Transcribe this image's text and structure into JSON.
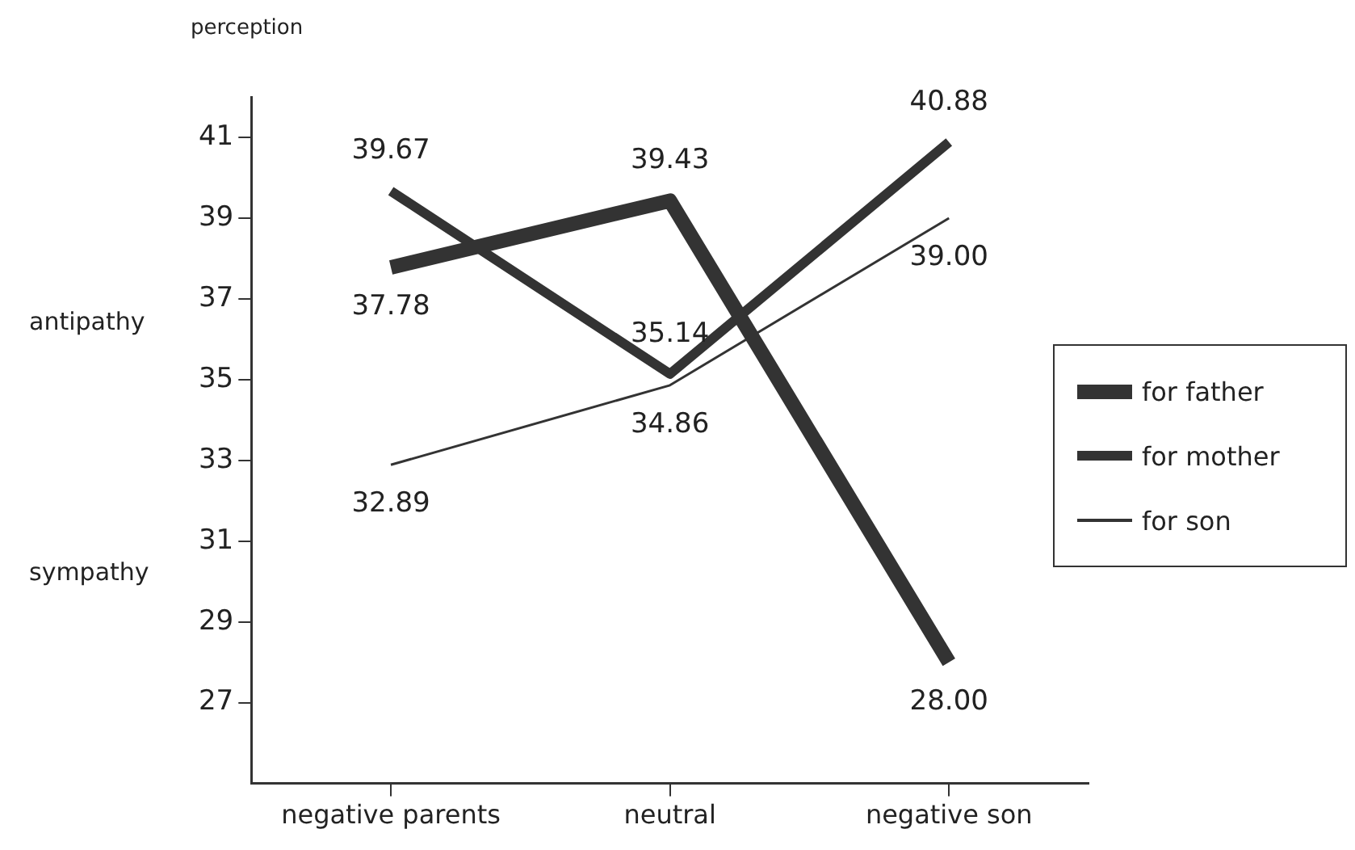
{
  "chart_data": {
    "type": "line",
    "ylabel": "perception",
    "categories": [
      "negative parents",
      "neutral",
      "negative son"
    ],
    "series": [
      {
        "name": "for father",
        "color": "#333333",
        "values": [
          37.78,
          39.43,
          28.0
        ],
        "value_labels": [
          "37.78",
          "39.43",
          "28.00"
        ]
      },
      {
        "name": "for mother",
        "color": "#333333",
        "values": [
          39.67,
          35.14,
          40.88
        ],
        "value_labels": [
          "39.67",
          "35.14",
          "40.88"
        ]
      },
      {
        "name": "for son",
        "color": "#333333",
        "values": [
          32.89,
          34.86,
          39.0
        ],
        "value_labels": [
          "32.89",
          "34.86",
          "39.00"
        ]
      }
    ],
    "ylim": [
      25,
      42
    ],
    "yticks": [
      27,
      29,
      31,
      33,
      35,
      37,
      39,
      41
    ],
    "grid": false,
    "legend": "right",
    "marker": "none",
    "line_style": "solid",
    "annotations": [
      "antipathy",
      "sympathy"
    ]
  }
}
